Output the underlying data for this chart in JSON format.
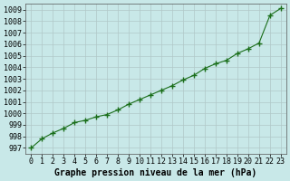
{
  "hours": [
    0,
    1,
    2,
    3,
    4,
    5,
    6,
    7,
    8,
    9,
    10,
    11,
    12,
    13,
    14,
    15,
    16,
    17,
    18,
    19,
    20,
    21,
    22,
    23
  ],
  "pressure": [
    997.0,
    997.8,
    998.3,
    998.7,
    999.2,
    999.4,
    999.7,
    999.9,
    1000.3,
    1000.8,
    1001.2,
    1001.6,
    1002.0,
    1002.4,
    1002.9,
    1003.3,
    1003.9,
    1004.3,
    1004.6,
    1005.2,
    1005.6,
    1006.1,
    1008.5,
    1009.1
  ],
  "xlim": [
    -0.5,
    23.5
  ],
  "ylim": [
    996.5,
    1009.5
  ],
  "yticks": [
    997,
    998,
    999,
    1000,
    1001,
    1002,
    1003,
    1004,
    1005,
    1006,
    1007,
    1008,
    1009
  ],
  "xticks": [
    0,
    1,
    2,
    3,
    4,
    5,
    6,
    7,
    8,
    9,
    10,
    11,
    12,
    13,
    14,
    15,
    16,
    17,
    18,
    19,
    20,
    21,
    22,
    23
  ],
  "line_color": "#1a6e1a",
  "marker_color": "#1a6e1a",
  "bg_color": "#c8e8e8",
  "grid_color": "#b0c8c8",
  "xlabel": "Graphe pression niveau de la mer (hPa)",
  "tick_fontsize": 6,
  "label_fontsize": 7
}
